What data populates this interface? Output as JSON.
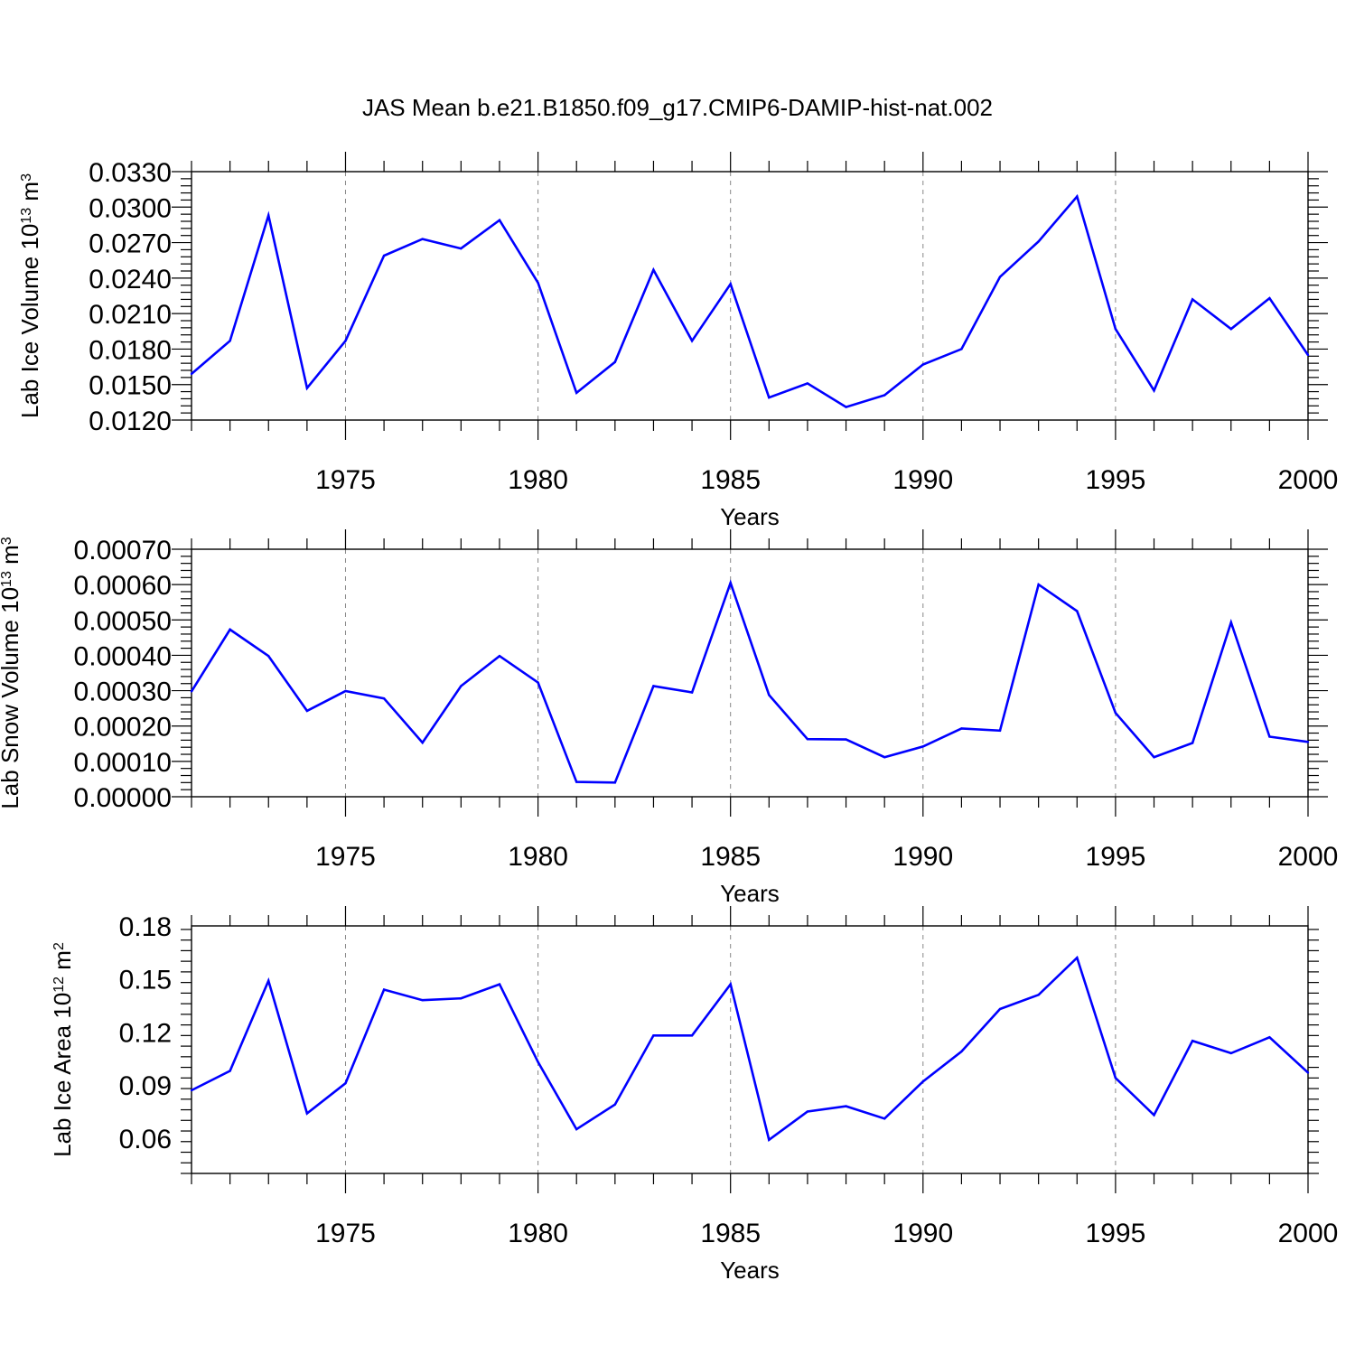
{
  "title": "JAS Mean b.e21.B1850.f09_g17.CMIP6-DAMIP-hist-nat.002",
  "line_color": "#0000ff",
  "chart_data": [
    {
      "type": "line",
      "xlabel": "Years",
      "ylabel": {
        "base": "Lab Ice Volume 10",
        "exp1": "13",
        "unit": " m",
        "exp2": "3"
      },
      "xlim": [
        1971,
        2000
      ],
      "ylim": [
        0.012,
        0.033
      ],
      "x_ticks": [
        1975,
        1980,
        1985,
        1990,
        1995,
        2000
      ],
      "y_ticks": [
        "0.0120",
        "0.0150",
        "0.0180",
        "0.0210",
        "0.0240",
        "0.0270",
        "0.0300",
        "0.0330"
      ],
      "grid": "dashed vertical at major x ticks",
      "x": [
        1971,
        1972,
        1973,
        1974,
        1975,
        1976,
        1977,
        1978,
        1979,
        1980,
        1981,
        1982,
        1983,
        1984,
        1985,
        1986,
        1987,
        1988,
        1989,
        1990,
        1991,
        1992,
        1993,
        1994,
        1995,
        1996,
        1997,
        1998,
        1999,
        2000
      ],
      "values": [
        0.0159,
        0.0187,
        0.0293,
        0.0147,
        0.0187,
        0.0259,
        0.0273,
        0.0265,
        0.0289,
        0.0236,
        0.0143,
        0.0169,
        0.0247,
        0.0187,
        0.0235,
        0.0139,
        0.0151,
        0.0131,
        0.0141,
        0.0167,
        0.018,
        0.0241,
        0.0271,
        0.0309,
        0.0197,
        0.0145,
        0.0222,
        0.0197,
        0.0223,
        0.0175
      ]
    },
    {
      "type": "line",
      "xlabel": "Years",
      "ylabel": {
        "base": "Lab Snow Volume 10",
        "exp1": "13",
        "unit": " m",
        "exp2": "3"
      },
      "xlim": [
        1971,
        2000
      ],
      "ylim": [
        0.0,
        0.0007
      ],
      "x_ticks": [
        1975,
        1980,
        1985,
        1990,
        1995,
        2000
      ],
      "y_ticks": [
        "0.00000",
        "0.00010",
        "0.00020",
        "0.00030",
        "0.00040",
        "0.00050",
        "0.00060",
        "0.00070"
      ],
      "grid": "dashed vertical at major x ticks",
      "x": [
        1971,
        1972,
        1973,
        1974,
        1975,
        1976,
        1977,
        1978,
        1979,
        1980,
        1981,
        1982,
        1983,
        1984,
        1985,
        1986,
        1987,
        1988,
        1989,
        1990,
        1991,
        1992,
        1993,
        1994,
        1995,
        1996,
        1997,
        1998,
        1999,
        2000
      ],
      "values": [
        0.000298,
        0.000473,
        0.000398,
        0.000243,
        0.000299,
        0.000278,
        0.000153,
        0.000313,
        0.000398,
        0.000323,
        4.2e-05,
        4e-05,
        0.000313,
        0.000295,
        0.000605,
        0.000288,
        0.000163,
        0.000162,
        0.000112,
        0.000142,
        0.000193,
        0.000187,
        0.0006,
        0.000525,
        0.000237,
        0.000112,
        0.000152,
        0.000493,
        0.00017,
        0.000155
      ]
    },
    {
      "type": "line",
      "xlabel": "Years",
      "ylabel": {
        "base": "Lab Ice Area 10",
        "exp1": "12",
        "unit": " m",
        "exp2": "2"
      },
      "xlim": [
        1971,
        2000
      ],
      "ylim": [
        0.04,
        0.18
      ],
      "x_ticks": [
        1975,
        1980,
        1985,
        1990,
        1995,
        2000
      ],
      "y_ticks": [
        "0.06",
        "0.09",
        "0.12",
        "0.15",
        "0.18"
      ],
      "grid": "dashed vertical at major x ticks",
      "x": [
        1971,
        1972,
        1973,
        1974,
        1975,
        1976,
        1977,
        1978,
        1979,
        1980,
        1981,
        1982,
        1983,
        1984,
        1985,
        1986,
        1987,
        1988,
        1989,
        1990,
        1991,
        1992,
        1993,
        1994,
        1995,
        1996,
        1997,
        1998,
        1999,
        2000
      ],
      "values": [
        0.087,
        0.098,
        0.149,
        0.074,
        0.091,
        0.144,
        0.138,
        0.139,
        0.147,
        0.103,
        0.065,
        0.079,
        0.118,
        0.118,
        0.147,
        0.059,
        0.075,
        0.078,
        0.071,
        0.092,
        0.109,
        0.133,
        0.141,
        0.162,
        0.094,
        0.073,
        0.115,
        0.108,
        0.117,
        0.097
      ]
    }
  ]
}
